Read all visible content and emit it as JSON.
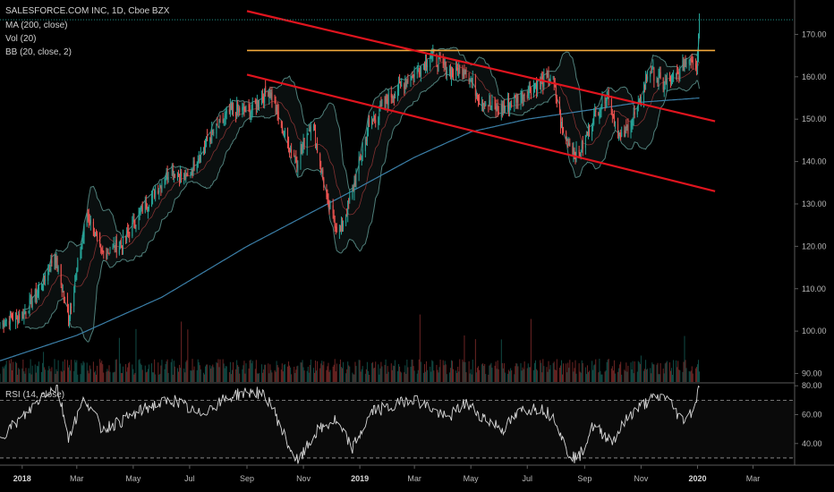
{
  "legend": {
    "symbol_line": "SALESFORCE.COM INC, 1D, Cboe BZX",
    "ma": "MA (200, close)",
    "vol": "Vol (20)",
    "bb": "BB (20, close, 2)",
    "rsi": "RSI (14, close)"
  },
  "last_price_label": "173.45",
  "colors": {
    "up": "#26a69a",
    "down": "#ef5350",
    "trendline": "#e0141e",
    "resistance": "#f2a93b",
    "ma": "#3b7fa8",
    "bollinger": "#4f7f7a",
    "rsi": "#d8d8d8",
    "background": "#000000"
  },
  "chart_data": [
    {
      "type": "line",
      "title": "SALESFORCE.COM INC, 1D, Cboe BZX",
      "pane": "price",
      "ylim": [
        88,
        176
      ],
      "y_ticks": [
        "90.00",
        "100.00",
        "110.00",
        "120.00",
        "130.00",
        "140.00",
        "150.00",
        "160.00",
        "170.00"
      ],
      "x_ticks": [
        "2018",
        "Mar",
        "May",
        "Jul",
        "Sep",
        "Nov",
        "2019",
        "Mar",
        "May",
        "Jul",
        "Sep",
        "Nov",
        "2020",
        "Mar"
      ],
      "x_range": [
        "2017-12-08",
        "2020-04-15"
      ],
      "close_series": {
        "name": "SALESFORCE.COM INC",
        "x": [
          "2017-12-08",
          "2018-01-02",
          "2018-01-20",
          "2018-02-05",
          "2018-02-20",
          "2018-03-12",
          "2018-03-28",
          "2018-04-20",
          "2018-05-15",
          "2018-06-10",
          "2018-06-28",
          "2018-07-20",
          "2018-08-15",
          "2018-09-05",
          "2018-09-25",
          "2018-10-10",
          "2018-10-25",
          "2018-11-10",
          "2018-11-27",
          "2018-12-10",
          "2018-12-24",
          "2019-01-10",
          "2019-02-01",
          "2019-02-25",
          "2019-03-20",
          "2019-04-10",
          "2019-04-25",
          "2019-05-10",
          "2019-05-31",
          "2019-06-20",
          "2019-07-10",
          "2019-07-28",
          "2019-08-08",
          "2019-08-25",
          "2019-09-10",
          "2019-09-25",
          "2019-10-10",
          "2019-10-28",
          "2019-11-10",
          "2019-11-25",
          "2019-12-10",
          "2019-12-23",
          "2019-12-31",
          "2020-01-03"
        ],
        "values": [
          102,
          104,
          110,
          118,
          103,
          128,
          118,
          121,
          130,
          138,
          136,
          145,
          152,
          152,
          157,
          147,
          140,
          150,
          130,
          123,
          133,
          148,
          155,
          160,
          165,
          161,
          162,
          155,
          152,
          155,
          158,
          160,
          147,
          141,
          150,
          156,
          145,
          152,
          162,
          158,
          160,
          165,
          163,
          173.45
        ]
      },
      "ma_200": {
        "name": "MA (200, close)",
        "x": [
          "2017-12-08",
          "2018-03-01",
          "2018-06-01",
          "2018-09-01",
          "2018-11-01",
          "2019-01-01",
          "2019-03-01",
          "2019-05-01",
          "2019-07-01",
          "2019-09-01",
          "2019-11-01",
          "2020-01-03"
        ],
        "values": [
          93,
          99,
          108,
          120,
          127,
          134,
          141,
          147,
          150,
          152,
          154,
          155
        ]
      },
      "annotations": {
        "resistance": {
          "y": 166.2,
          "x": [
            "2018-09-01",
            "2020-01-20"
          ]
        },
        "upper_trendline": {
          "x": [
            "2018-09-01",
            "2020-01-20"
          ],
          "y": [
            175.5,
            149.5
          ]
        },
        "lower_trendline": {
          "x": [
            "2018-09-01",
            "2020-01-20"
          ],
          "y": [
            160.5,
            133.0
          ]
        },
        "last_price": 173.45
      }
    },
    {
      "type": "bar",
      "title": "Vol (20)",
      "pane": "price",
      "note": "relative volume bars drawn at bottom of price pane"
    },
    {
      "type": "line",
      "title": "RSI (14, close)",
      "pane": "rsi",
      "ylim": [
        25,
        82
      ],
      "y_ticks": [
        "40.00",
        "60.00",
        "80.00"
      ],
      "levels": [
        70,
        30
      ],
      "x": [
        "2017-12-08",
        "2018-01-05",
        "2018-01-25",
        "2018-02-08",
        "2018-02-20",
        "2018-03-10",
        "2018-03-28",
        "2018-04-20",
        "2018-05-20",
        "2018-06-15",
        "2018-07-10",
        "2018-08-01",
        "2018-08-20",
        "2018-09-10",
        "2018-09-25",
        "2018-10-15",
        "2018-10-26",
        "2018-11-15",
        "2018-12-05",
        "2018-12-24",
        "2019-01-15",
        "2019-02-05",
        "2019-02-25",
        "2019-03-15",
        "2019-04-05",
        "2019-04-25",
        "2019-05-15",
        "2019-06-05",
        "2019-06-25",
        "2019-07-15",
        "2019-08-01",
        "2019-08-12",
        "2019-08-25",
        "2019-09-10",
        "2019-10-01",
        "2019-10-20",
        "2019-11-10",
        "2019-11-28",
        "2019-12-15",
        "2019-12-27",
        "2020-01-03"
      ],
      "values": [
        45,
        60,
        75,
        79,
        45,
        72,
        50,
        56,
        66,
        70,
        60,
        68,
        74,
        76,
        70,
        40,
        27,
        48,
        56,
        37,
        63,
        65,
        72,
        66,
        57,
        68,
        58,
        50,
        63,
        65,
        57,
        35,
        29,
        52,
        42,
        60,
        70,
        73,
        56,
        63,
        79
      ]
    }
  ]
}
